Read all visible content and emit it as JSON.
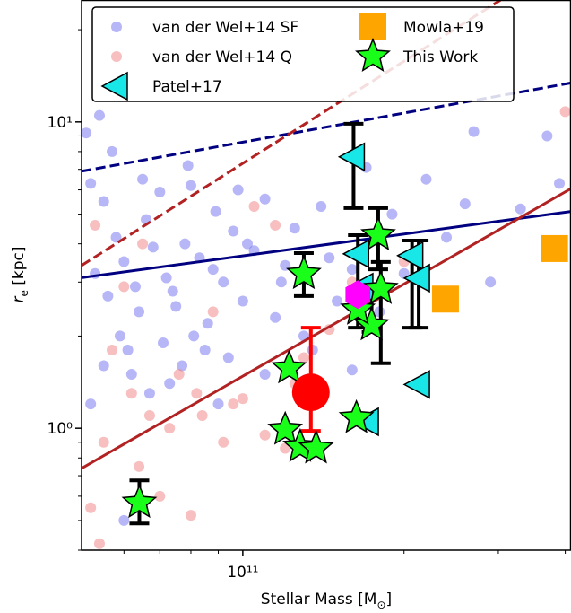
{
  "chart_data": {
    "type": "scatter",
    "x_label": "Stellar Mass [M",
    "x_label_sub": "⊙",
    "x_label_end": "]",
    "y_label": "r",
    "y_label_sub": "e",
    "y_label_end": " [kpc]",
    "xlim": [
      50000000000.0,
      410000000000.0
    ],
    "ylim": [
      0.4,
      25
    ],
    "xlog": true,
    "ylog": true,
    "xticks": [
      {
        "value": 100000000000.0,
        "label": "10¹¹"
      }
    ],
    "yticks": [
      {
        "value": 1,
        "label": "10⁰"
      },
      {
        "value": 10,
        "label": "10¹"
      }
    ],
    "xticks_minor": [
      60000000000.0,
      70000000000.0,
      80000000000.0,
      90000000000.0,
      200000000000.0,
      300000000000.0,
      400000000000.0
    ],
    "yticks_minor": [
      0.4,
      0.5,
      0.6,
      0.7,
      0.8,
      0.9,
      2,
      3,
      4,
      5,
      6,
      7,
      8,
      9,
      20
    ],
    "legend": "upper left",
    "series": [
      {
        "name": "van der Wel+14 SF",
        "color": "#7070f0",
        "marker": "dot",
        "x": [
          52000000000.0,
          55000000000.0,
          58000000000.0,
          60000000000.0,
          63000000000.0,
          66000000000.0,
          70000000000.0,
          72000000000.0,
          75000000000.0,
          78000000000.0,
          80000000000.0,
          83000000000.0,
          86000000000.0,
          89000000000.0,
          92000000000.0,
          96000000000.0,
          100000000000.0,
          105000000000.0,
          110000000000.0,
          115000000000.0,
          53000000000.0,
          56000000000.0,
          59000000000.0,
          61000000000.0,
          64000000000.0,
          68000000000.0,
          71000000000.0,
          74000000000.0,
          77000000000.0,
          81000000000.0,
          85000000000.0,
          88000000000.0,
          94000000000.0,
          120000000000.0,
          125000000000.0,
          130000000000.0,
          140000000000.0,
          150000000000.0,
          160000000000.0,
          170000000000.0,
          180000000000.0,
          190000000000.0,
          200000000000.0,
          220000000000.0,
          240000000000.0,
          260000000000.0,
          290000000000.0,
          330000000000.0,
          370000000000.0,
          390000000000.0,
          51000000000.0,
          54000000000.0,
          57000000000.0,
          62000000000.0,
          67000000000.0,
          52000000000.0,
          55000000000.0,
          73000000000.0,
          160000000000.0,
          60000000000.0,
          90000000000.0,
          110000000000.0,
          270000000000.0,
          135000000000.0,
          79000000000.0,
          98000000000.0,
          65000000000.0,
          102000000000.0,
          118000000000.0,
          145000000000.0
        ],
        "values": [
          6.3,
          5.5,
          4.2,
          3.5,
          2.9,
          4.8,
          5.9,
          3.1,
          2.5,
          4.0,
          6.2,
          3.6,
          2.2,
          5.1,
          3.0,
          4.4,
          2.6,
          3.8,
          5.6,
          2.3,
          3.2,
          2.7,
          2.0,
          1.8,
          2.4,
          3.9,
          1.9,
          2.8,
          1.6,
          2.0,
          1.8,
          3.3,
          1.7,
          3.4,
          4.5,
          2.0,
          5.3,
          2.6,
          3.3,
          7.1,
          2.4,
          5.0,
          3.2,
          6.5,
          4.2,
          5.4,
          3.0,
          5.2,
          9.0,
          6.3,
          9.2,
          10.5,
          8.0,
          1.5,
          1.3,
          1.2,
          1.6,
          1.4,
          1.55,
          0.5,
          1.2,
          1.5,
          9.3,
          1.8,
          7.2,
          6.0,
          6.5,
          4.0,
          3.0,
          3.6
        ]
      },
      {
        "name": "van der Wel+14 Q",
        "color": "#f08080",
        "marker": "dot",
        "x": [
          53000000000.0,
          57000000000.0,
          60000000000.0,
          64000000000.0,
          67000000000.0,
          70000000000.0,
          52000000000.0,
          55000000000.0,
          62000000000.0,
          73000000000.0,
          76000000000.0,
          80000000000.0,
          84000000000.0,
          88000000000.0,
          92000000000.0,
          96000000000.0,
          105000000000.0,
          110000000000.0,
          115000000000.0,
          120000000000.0,
          130000000000.0,
          145000000000.0,
          160000000000.0,
          200000000000.0,
          400000000000.0,
          54000000000.0,
          65000000000.0,
          82000000000.0,
          100000000000.0,
          125000000000.0
        ],
        "values": [
          4.6,
          1.8,
          2.9,
          0.75,
          1.1,
          0.6,
          0.55,
          0.9,
          1.3,
          1.0,
          1.5,
          0.52,
          1.1,
          2.4,
          0.9,
          1.2,
          5.3,
          0.95,
          4.6,
          0.86,
          1.7,
          2.1,
          3.0,
          3.5,
          10.8,
          0.42,
          4.0,
          1.3,
          1.25,
          1.4
        ]
      },
      {
        "name": "Patel+17",
        "color": "#19e6e6",
        "marker": "triangle",
        "x": [
          161000000000.0,
          164000000000.0,
          207000000000.0,
          213000000000.0,
          213000000000.0,
          171000000000.0,
          167000000000.0
        ],
        "values": [
          7.69,
          3.71,
          3.66,
          3.09,
          1.39,
          1.05,
          2.89
        ],
        "yerr_low": [
          5.23,
          2.13,
          2.13,
          2.13,
          null,
          null,
          null
        ],
        "yerr_high": [
          9.86,
          4.27,
          4.1,
          4.1,
          null,
          null,
          null
        ]
      },
      {
        "name": "Mowla+19",
        "color": "#ffa500",
        "marker": "square",
        "x": [
          239000000000.0,
          382000000000.0
        ],
        "values": [
          2.64,
          3.86
        ]
      },
      {
        "name": "This Work",
        "color": "#1aff1a",
        "marker": "star",
        "x": [
          64100000000.0,
          130000000000.0,
          122000000000.0,
          120000000000.0,
          128000000000.0,
          137000000000.0,
          163000000000.0,
          179000000000.0,
          181000000000.0,
          174000000000.0,
          164000000000.0
        ],
        "values": [
          0.571,
          3.19,
          1.57,
          0.99,
          0.87,
          0.86,
          1.08,
          4.27,
          2.85,
          2.17,
          2.44
        ],
        "yerr_low": [
          0.489,
          2.7,
          null,
          null,
          null,
          null,
          null,
          3.3,
          1.63,
          2.06,
          null
        ],
        "yerr_high": [
          0.676,
          3.73,
          null,
          null,
          null,
          null,
          null,
          5.23,
          3.49,
          2.7,
          null
        ]
      },
      {
        "color": "#ff0000",
        "marker": "bigdot",
        "x": [
          134000000000.0
        ],
        "values": [
          1.31
        ],
        "yerr_low": [
          0.98
        ],
        "yerr_high": [
          2.13
        ]
      },
      {
        "color": "#ff00ff",
        "marker": "hexagon",
        "x": [
          164000000000.0
        ],
        "values": [
          2.73
        ]
      }
    ],
    "lines": [
      {
        "color": "#000080",
        "dashed": false,
        "x": [
          50000000000.0,
          410000000000.0
        ],
        "values": [
          3.1,
          5.1
        ]
      },
      {
        "color": "#000080",
        "dashed": true,
        "x": [
          50000000000.0,
          410000000000.0
        ],
        "values": [
          6.9,
          13.4
        ]
      },
      {
        "color": "#b22222",
        "dashed": false,
        "x": [
          50000000000.0,
          410000000000.0
        ],
        "values": [
          0.74,
          6.06
        ]
      },
      {
        "color": "#b22222",
        "dashed": true,
        "x": [
          50000000000.0,
          303000000000.0
        ],
        "values": [
          3.4,
          25
        ]
      }
    ]
  }
}
